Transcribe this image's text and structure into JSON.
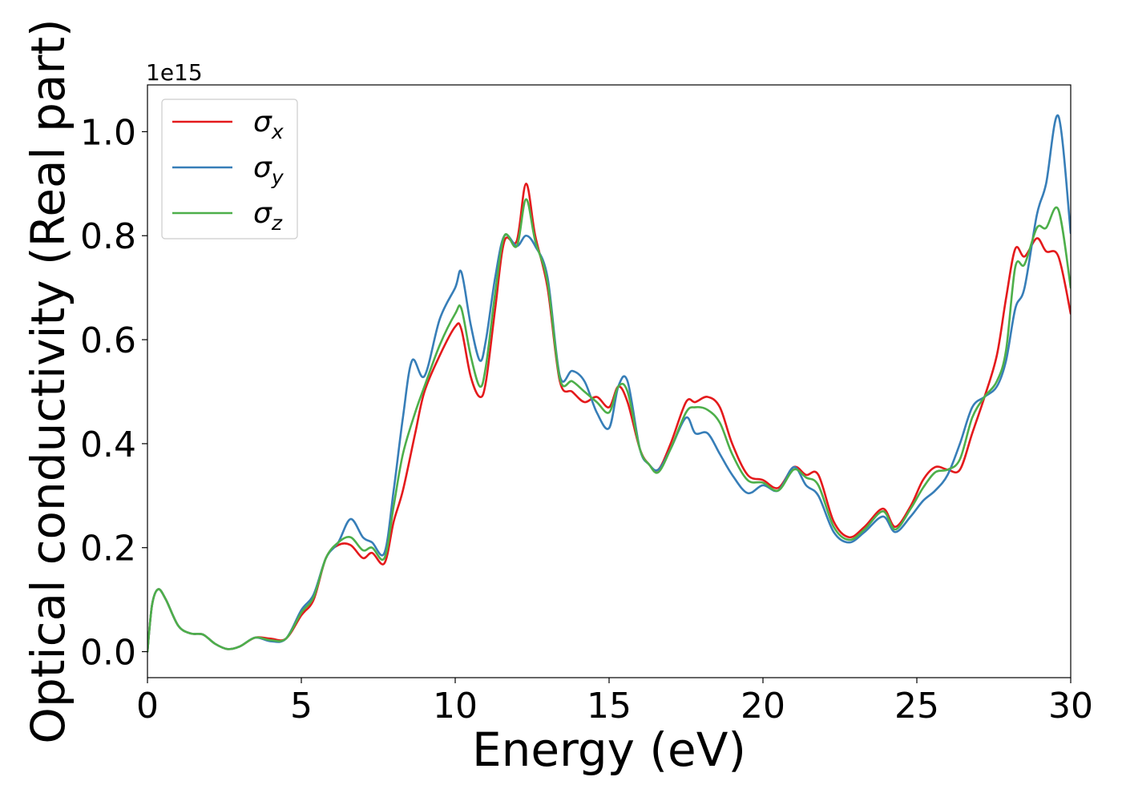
{
  "chart_data": {
    "type": "line",
    "title": "",
    "xlabel": "Energy (eV)",
    "ylabel": "Optical conductivity (Real part)",
    "y_offset_label": "1e15",
    "xlim": [
      0,
      30
    ],
    "ylim": [
      -0.05,
      1.09
    ],
    "xticks": [
      0,
      5,
      10,
      15,
      20,
      25,
      30
    ],
    "xtick_labels": [
      "0",
      "5",
      "10",
      "15",
      "20",
      "25",
      "30"
    ],
    "yticks": [
      0.0,
      0.2,
      0.4,
      0.6,
      0.8,
      1.0
    ],
    "ytick_labels": [
      "0.0",
      "0.2",
      "0.4",
      "0.6",
      "0.8",
      "1.0"
    ],
    "grid": false,
    "legend_position": "top-left",
    "series": [
      {
        "name": "σ",
        "subscript": "x",
        "color": "#e41a1c",
        "x": [
          0,
          0.15,
          0.35,
          0.6,
          1.0,
          1.4,
          1.8,
          2.2,
          2.6,
          3.0,
          3.5,
          4.0,
          4.5,
          5.0,
          5.4,
          5.8,
          6.2,
          6.6,
          7.0,
          7.3,
          7.7,
          8.0,
          8.3,
          8.7,
          9.0,
          9.5,
          10.0,
          10.2,
          10.5,
          10.8,
          11.0,
          11.3,
          11.6,
          12.0,
          12.3,
          12.6,
          13.0,
          13.4,
          13.8,
          14.2,
          14.6,
          15.0,
          15.3,
          15.6,
          16.0,
          16.3,
          16.6,
          17.0,
          17.5,
          17.8,
          18.2,
          18.6,
          19.0,
          19.5,
          20.0,
          20.5,
          21.0,
          21.4,
          21.8,
          22.3,
          22.8,
          23.3,
          23.9,
          24.3,
          24.8,
          25.2,
          25.6,
          26.0,
          26.4,
          26.8,
          27.2,
          27.6,
          27.9,
          28.2,
          28.5,
          28.9,
          29.2,
          29.6,
          30.0
        ],
        "values": [
          0.0,
          0.09,
          0.12,
          0.1,
          0.05,
          0.035,
          0.033,
          0.015,
          0.005,
          0.01,
          0.027,
          0.025,
          0.025,
          0.07,
          0.1,
          0.18,
          0.205,
          0.205,
          0.18,
          0.19,
          0.17,
          0.25,
          0.31,
          0.42,
          0.5,
          0.57,
          0.625,
          0.62,
          0.53,
          0.49,
          0.52,
          0.66,
          0.79,
          0.79,
          0.9,
          0.8,
          0.7,
          0.52,
          0.5,
          0.48,
          0.49,
          0.47,
          0.51,
          0.48,
          0.39,
          0.36,
          0.35,
          0.4,
          0.48,
          0.48,
          0.49,
          0.47,
          0.4,
          0.34,
          0.33,
          0.315,
          0.355,
          0.34,
          0.34,
          0.25,
          0.22,
          0.24,
          0.275,
          0.24,
          0.28,
          0.33,
          0.355,
          0.35,
          0.35,
          0.42,
          0.49,
          0.57,
          0.68,
          0.775,
          0.76,
          0.795,
          0.77,
          0.76,
          0.65
        ]
      },
      {
        "name": "σ",
        "subscript": "y",
        "color": "#377eb8",
        "x": [
          0,
          0.15,
          0.35,
          0.6,
          1.0,
          1.4,
          1.8,
          2.2,
          2.6,
          3.0,
          3.5,
          4.0,
          4.5,
          5.0,
          5.4,
          5.8,
          6.2,
          6.6,
          7.0,
          7.3,
          7.7,
          8.0,
          8.3,
          8.6,
          9.0,
          9.5,
          10.0,
          10.2,
          10.5,
          10.8,
          11.0,
          11.3,
          11.6,
          12.0,
          12.3,
          12.6,
          13.0,
          13.4,
          13.8,
          14.2,
          14.6,
          15.0,
          15.3,
          15.6,
          16.0,
          16.3,
          16.6,
          17.0,
          17.5,
          17.8,
          18.2,
          18.6,
          19.0,
          19.5,
          20.0,
          20.5,
          21.0,
          21.4,
          21.8,
          22.3,
          22.8,
          23.3,
          23.9,
          24.3,
          24.8,
          25.2,
          25.6,
          26.0,
          26.4,
          26.8,
          27.2,
          27.6,
          27.9,
          28.2,
          28.5,
          28.9,
          29.2,
          29.6,
          30.0
        ],
        "values": [
          0.0,
          0.09,
          0.12,
          0.1,
          0.05,
          0.035,
          0.033,
          0.015,
          0.005,
          0.01,
          0.027,
          0.02,
          0.025,
          0.08,
          0.11,
          0.18,
          0.21,
          0.255,
          0.22,
          0.21,
          0.19,
          0.31,
          0.45,
          0.56,
          0.53,
          0.64,
          0.7,
          0.73,
          0.63,
          0.56,
          0.6,
          0.72,
          0.8,
          0.78,
          0.8,
          0.78,
          0.72,
          0.53,
          0.54,
          0.52,
          0.46,
          0.43,
          0.51,
          0.52,
          0.39,
          0.36,
          0.35,
          0.39,
          0.45,
          0.42,
          0.42,
          0.38,
          0.34,
          0.305,
          0.32,
          0.31,
          0.355,
          0.32,
          0.3,
          0.23,
          0.21,
          0.23,
          0.26,
          0.23,
          0.26,
          0.29,
          0.31,
          0.34,
          0.4,
          0.47,
          0.49,
          0.51,
          0.56,
          0.66,
          0.7,
          0.84,
          0.9,
          1.03,
          0.805
        ]
      },
      {
        "name": "σ",
        "subscript": "z",
        "color": "#4daf4a",
        "x": [
          0,
          0.15,
          0.35,
          0.6,
          1.0,
          1.4,
          1.8,
          2.2,
          2.6,
          3.0,
          3.5,
          4.0,
          4.5,
          5.0,
          5.4,
          5.8,
          6.2,
          6.6,
          7.0,
          7.3,
          7.7,
          8.0,
          8.3,
          8.7,
          9.0,
          9.5,
          10.0,
          10.2,
          10.5,
          10.8,
          11.0,
          11.3,
          11.6,
          12.0,
          12.3,
          12.6,
          13.0,
          13.4,
          13.8,
          14.2,
          14.6,
          15.0,
          15.3,
          15.6,
          16.0,
          16.3,
          16.6,
          17.0,
          17.5,
          17.8,
          18.2,
          18.6,
          19.0,
          19.5,
          20.0,
          20.5,
          21.0,
          21.4,
          21.8,
          22.3,
          22.8,
          23.3,
          23.9,
          24.3,
          24.8,
          25.2,
          25.6,
          26.0,
          26.4,
          26.8,
          27.2,
          27.6,
          27.9,
          28.2,
          28.5,
          28.9,
          29.2,
          29.6,
          30.0
        ],
        "values": [
          0.0,
          0.09,
          0.12,
          0.1,
          0.05,
          0.035,
          0.033,
          0.015,
          0.005,
          0.01,
          0.027,
          0.022,
          0.025,
          0.075,
          0.105,
          0.18,
          0.21,
          0.22,
          0.195,
          0.2,
          0.18,
          0.28,
          0.38,
          0.46,
          0.51,
          0.59,
          0.65,
          0.66,
          0.57,
          0.51,
          0.55,
          0.69,
          0.8,
          0.78,
          0.87,
          0.79,
          0.71,
          0.525,
          0.52,
          0.5,
          0.48,
          0.46,
          0.51,
          0.5,
          0.39,
          0.36,
          0.345,
          0.39,
          0.46,
          0.47,
          0.465,
          0.44,
          0.38,
          0.33,
          0.325,
          0.31,
          0.35,
          0.335,
          0.32,
          0.24,
          0.215,
          0.235,
          0.27,
          0.235,
          0.275,
          0.315,
          0.345,
          0.35,
          0.37,
          0.45,
          0.49,
          0.52,
          0.58,
          0.74,
          0.745,
          0.815,
          0.815,
          0.85,
          0.7
        ]
      }
    ]
  }
}
